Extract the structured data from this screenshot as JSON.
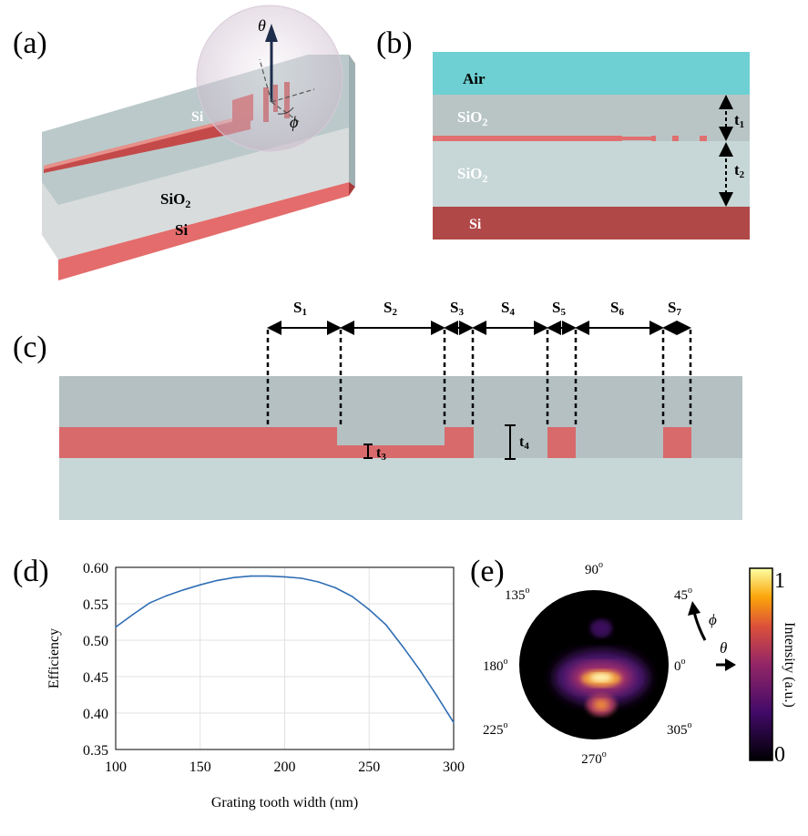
{
  "panels": {
    "a": {
      "label": "(a)",
      "theta": "θ",
      "phi": "ϕ",
      "si_top": "Si",
      "sio2": "SiO",
      "sio2_sub": "2",
      "si_bottom": "Si"
    },
    "b": {
      "label": "(b)",
      "air": "Air",
      "sio2_top": "SiO",
      "sio2_top_sub": "2",
      "sio2_bottom": "SiO",
      "sio2_bottom_sub": "2",
      "si": "Si",
      "t1": "t",
      "t1_sub": "1",
      "t2": "t",
      "t2_sub": "2"
    },
    "c": {
      "label": "(c)",
      "segments": [
        {
          "name": "S",
          "sub": "1"
        },
        {
          "name": "S",
          "sub": "2"
        },
        {
          "name": "S",
          "sub": "3"
        },
        {
          "name": "S",
          "sub": "4"
        },
        {
          "name": "S",
          "sub": "5"
        },
        {
          "name": "S",
          "sub": "6"
        },
        {
          "name": "S",
          "sub": "7"
        }
      ],
      "t3": "t",
      "t3_sub": "3",
      "t4": "t",
      "t4_sub": "4"
    },
    "e": {
      "label": "(e)",
      "angles": [
        "90",
        "45",
        "0",
        "305",
        "270",
        "225",
        "180",
        "135"
      ],
      "degree_symbol": "o",
      "phi": "ϕ",
      "theta": "θ",
      "colorbar_max": "1",
      "colorbar_min": "0",
      "colorbar_label": "Intensity (a.u.)"
    }
  },
  "chart_data": {
    "type": "line",
    "panel_label": "(d)",
    "title": "",
    "xlabel": "Grating tooth width (nm)",
    "ylabel": "Efficiency",
    "xlim": [
      100,
      300
    ],
    "ylim": [
      0.35,
      0.6
    ],
    "x_ticks": [
      "100",
      "150",
      "200",
      "250",
      "300"
    ],
    "y_ticks": [
      "0.35",
      "0.40",
      "0.45",
      "0.50",
      "0.55",
      "0.60"
    ],
    "grid": true,
    "series": [
      {
        "name": "Efficiency",
        "color": "#2f6eb5",
        "x": [
          100,
          110,
          120,
          130,
          140,
          150,
          160,
          170,
          180,
          190,
          200,
          210,
          220,
          230,
          240,
          250,
          260,
          270,
          280,
          290,
          300
        ],
        "y": [
          0.518,
          0.535,
          0.551,
          0.561,
          0.569,
          0.576,
          0.582,
          0.586,
          0.588,
          0.588,
          0.587,
          0.585,
          0.58,
          0.572,
          0.56,
          0.542,
          0.521,
          0.491,
          0.459,
          0.424,
          0.387
        ]
      }
    ]
  },
  "colors": {
    "silicon": "#e07070",
    "silicon_dark": "#a94444",
    "oxide": "#c5d5d5",
    "oxide_top": "#b8c4c4",
    "air": "#6ed0d2",
    "line": "#2f6eb5"
  }
}
